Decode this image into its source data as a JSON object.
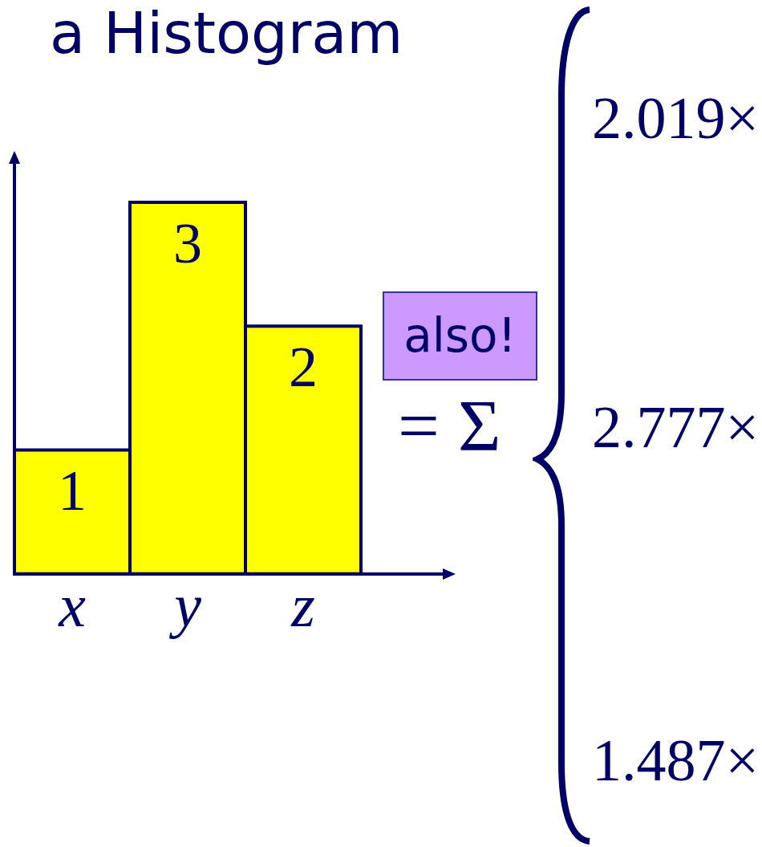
{
  "chart_data": {
    "type": "bar",
    "title": "a Histogram",
    "categories": [
      "x",
      "y",
      "z"
    ],
    "values": [
      1,
      3,
      2
    ],
    "color": "#ffff00",
    "data_labels": true,
    "tick_labels": "x",
    "annotations": [
      "also!",
      "= Σ",
      "2.019×",
      "2.777×",
      "1.487×"
    ]
  }
}
